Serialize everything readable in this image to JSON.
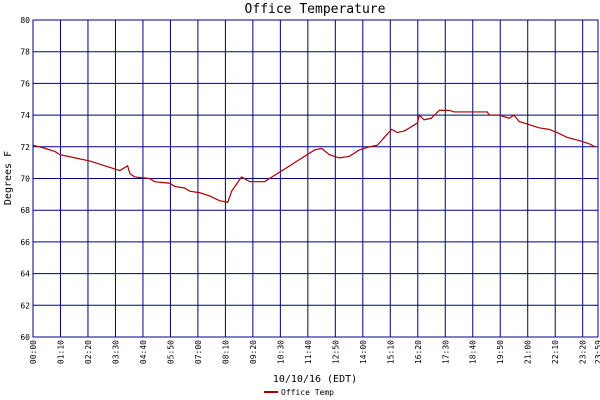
{
  "chart_data": {
    "type": "line",
    "title": "Office Temperature",
    "ylabel": "Degrees F",
    "xlabel": "10/10/16 (EDT)",
    "xlim": [
      0,
      1439
    ],
    "ylim": [
      60,
      80
    ],
    "yticks": [
      60,
      62,
      64,
      66,
      68,
      70,
      72,
      74,
      76,
      78,
      80
    ],
    "xticks": [
      {
        "value": 0,
        "label": "00:00"
      },
      {
        "value": 70,
        "label": "01:10"
      },
      {
        "value": 140,
        "label": "02:20"
      },
      {
        "value": 210,
        "label": "03:30"
      },
      {
        "value": 280,
        "label": "04:40"
      },
      {
        "value": 350,
        "label": "05:50"
      },
      {
        "value": 420,
        "label": "07:00"
      },
      {
        "value": 490,
        "label": "08:10"
      },
      {
        "value": 560,
        "label": "09:20"
      },
      {
        "value": 630,
        "label": "10:30"
      },
      {
        "value": 700,
        "label": "11:40"
      },
      {
        "value": 770,
        "label": "12:50"
      },
      {
        "value": 840,
        "label": "14:00"
      },
      {
        "value": 910,
        "label": "15:10"
      },
      {
        "value": 980,
        "label": "16:20"
      },
      {
        "value": 1050,
        "label": "17:30"
      },
      {
        "value": 1120,
        "label": "18:40"
      },
      {
        "value": 1190,
        "label": "19:50"
      },
      {
        "value": 1260,
        "label": "21:00"
      },
      {
        "value": 1330,
        "label": "22:10"
      },
      {
        "value": 1400,
        "label": "23:20"
      },
      {
        "value": 1439,
        "label": "23:59"
      }
    ],
    "grid": true,
    "grid_color": "#000080",
    "legend": "bottom",
    "x": [
      0,
      31,
      56,
      69,
      107,
      145,
      183,
      221,
      241,
      247,
      259,
      297,
      310,
      348,
      361,
      386,
      399,
      425,
      450,
      475,
      496,
      506,
      531,
      552,
      590,
      615,
      641,
      679,
      717,
      735,
      755,
      780,
      806,
      831,
      857,
      877,
      895,
      913,
      928,
      946,
      966,
      979,
      984,
      996,
      1014,
      1035,
      1060,
      1073,
      1157,
      1162,
      1187,
      1213,
      1225,
      1238,
      1263,
      1289,
      1314,
      1335,
      1360,
      1390,
      1416,
      1431
    ],
    "series": [
      {
        "name": "Office Temp",
        "color": "#aa0000",
        "values": [
          72.1,
          71.9,
          71.7,
          71.5,
          71.3,
          71.1,
          70.8,
          70.5,
          70.8,
          70.3,
          70.1,
          70.0,
          69.8,
          69.7,
          69.5,
          69.4,
          69.2,
          69.1,
          68.9,
          68.6,
          68.5,
          69.2,
          70.1,
          69.8,
          69.8,
          70.2,
          70.6,
          71.2,
          71.8,
          71.9,
          71.5,
          71.3,
          71.4,
          71.8,
          72.0,
          72.1,
          72.6,
          73.1,
          72.9,
          73.0,
          73.3,
          73.5,
          74.0,
          73.7,
          73.8,
          74.3,
          74.3,
          74.2,
          74.2,
          74.0,
          74.0,
          73.8,
          74.0,
          73.6,
          73.4,
          73.2,
          73.1,
          72.9,
          72.6,
          72.4,
          72.2,
          72.0
        ]
      }
    ]
  }
}
